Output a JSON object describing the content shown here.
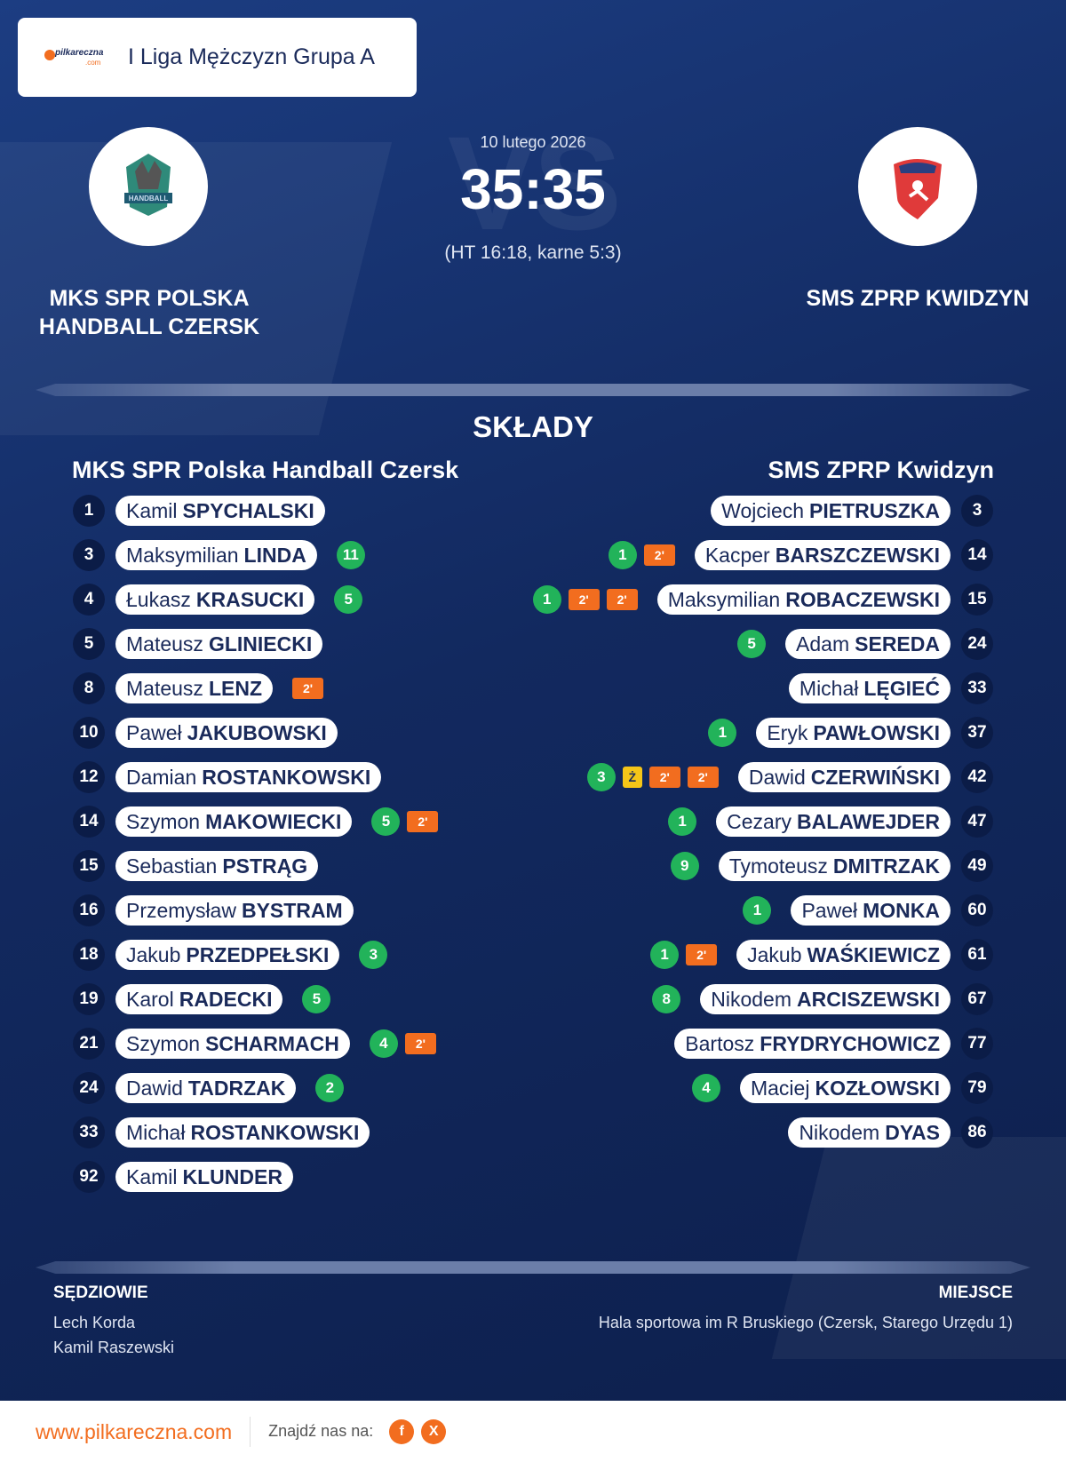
{
  "header": {
    "logo_name": "pilkareczna",
    "logo_domain": ".com",
    "league": "I Liga Mężczyzn Grupa A"
  },
  "match": {
    "date": "10 lutego 2026",
    "vs": "VS",
    "score": "35:35",
    "detail": "(HT 16:18, karne 5:3)"
  },
  "home": {
    "name_line1": "MKS SPR POLSKA",
    "name_line2": "HANDBALL CZERSK",
    "logo_text": "HANDBALL"
  },
  "away": {
    "name": "SMS ZPRP KWIDZYN"
  },
  "lineups": {
    "title": "SKŁADY",
    "home_team": "MKS SPR Polska Handball Czersk",
    "away_team": "SMS ZPRP Kwidzyn",
    "home_players": [
      {
        "number": 1,
        "first": "Kamil",
        "last": "SPYCHALSKI"
      },
      {
        "number": 3,
        "first": "Maksymilian",
        "last": "LINDA",
        "goals": 11
      },
      {
        "number": 4,
        "first": "Łukasz",
        "last": "KRASUCKI",
        "goals": 5
      },
      {
        "number": 5,
        "first": "Mateusz",
        "last": "GLINIECKI"
      },
      {
        "number": 8,
        "first": "Mateusz",
        "last": "LENZ",
        "events": [
          "2'"
        ]
      },
      {
        "number": 10,
        "first": "Paweł",
        "last": "JAKUBOWSKI"
      },
      {
        "number": 12,
        "first": "Damian",
        "last": "ROSTANKOWSKI"
      },
      {
        "number": 14,
        "first": "Szymon",
        "last": "MAKOWIECKI",
        "goals": 5,
        "events": [
          "2'"
        ]
      },
      {
        "number": 15,
        "first": "Sebastian",
        "last": "PSTRĄG"
      },
      {
        "number": 16,
        "first": "Przemysław",
        "last": "BYSTRAM"
      },
      {
        "number": 18,
        "first": "Jakub",
        "last": "PRZEDPEŁSKI",
        "goals": 3
      },
      {
        "number": 19,
        "first": "Karol",
        "last": "RADECKI",
        "goals": 5
      },
      {
        "number": 21,
        "first": "Szymon",
        "last": "SCHARMACH",
        "goals": 4,
        "events": [
          "2'"
        ]
      },
      {
        "number": 24,
        "first": "Dawid",
        "last": "TADRZAK",
        "goals": 2
      },
      {
        "number": 33,
        "first": "Michał",
        "last": "ROSTANKOWSKI"
      },
      {
        "number": 92,
        "first": "Kamil",
        "last": "KLUNDER"
      }
    ],
    "away_players": [
      {
        "number": 3,
        "first": "Wojciech",
        "last": "PIETRUSZKA"
      },
      {
        "number": 14,
        "first": "Kacper",
        "last": "BARSZCZEWSKI",
        "goals": 1,
        "events": [
          "2'"
        ]
      },
      {
        "number": 15,
        "first": "Maksymilian",
        "last": "ROBACZEWSKI",
        "goals": 1,
        "events": [
          "2'",
          "2'"
        ]
      },
      {
        "number": 24,
        "first": "Adam",
        "last": "SEREDA",
        "goals": 5
      },
      {
        "number": 33,
        "first": "Michał",
        "last": "LĘGIEĆ"
      },
      {
        "number": 37,
        "first": "Eryk",
        "last": "PAWŁOWSKI",
        "goals": 1
      },
      {
        "number": 42,
        "first": "Dawid",
        "last": "CZERWIŃSKI",
        "goals": 3,
        "events": [
          "Ż",
          "2'",
          "2'"
        ]
      },
      {
        "number": 47,
        "first": "Cezary",
        "last": "BALAWEJDER",
        "goals": 1
      },
      {
        "number": 49,
        "first": "Tymoteusz",
        "last": "DMITRZAK",
        "goals": 9
      },
      {
        "number": 60,
        "first": "Paweł",
        "last": "MONKA",
        "goals": 1
      },
      {
        "number": 61,
        "first": "Jakub",
        "last": "WAŚKIEWICZ",
        "goals": 1,
        "events": [
          "2'"
        ]
      },
      {
        "number": 67,
        "first": "Nikodem",
        "last": "ARCISZEWSKI",
        "goals": 8
      },
      {
        "number": 77,
        "first": "Bartosz",
        "last": "FRYDRYCHOWICZ"
      },
      {
        "number": 79,
        "first": "Maciej",
        "last": "KOZŁOWSKI",
        "goals": 4
      },
      {
        "number": 86,
        "first": "Nikodem",
        "last": "DYAS"
      }
    ]
  },
  "officials": {
    "referees_title": "SĘDZIOWIE",
    "referees": [
      "Lech Korda",
      "Kamil Raszewski"
    ],
    "venue_title": "MIEJSCE",
    "venue": "Hala sportowa im R Bruskiego (Czersk, Starego Urzędu 1)"
  },
  "footer": {
    "website": "www.pilkareczna.com",
    "follow": "Znajdź nas na:",
    "social": [
      "f",
      "X"
    ]
  }
}
